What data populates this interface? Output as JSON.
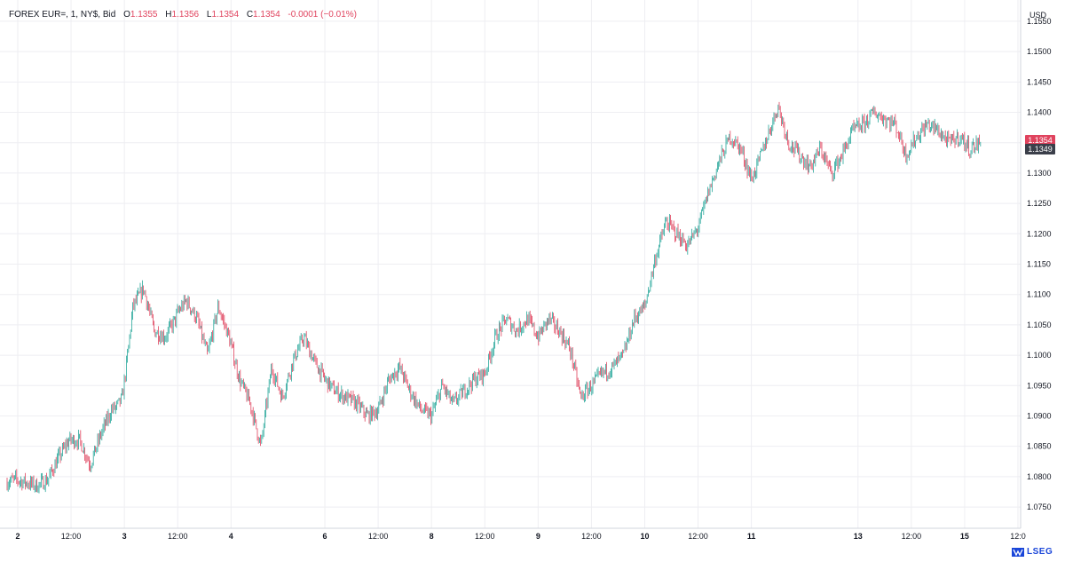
{
  "header": {
    "symbol": "FOREX EUR=, 1, NY$, Bid",
    "o_label": "O",
    "o_value": "1.1355",
    "h_label": "H",
    "h_value": "1.1356",
    "l_label": "L",
    "l_value": "1.1354",
    "c_label": "C",
    "c_value": "1.1354",
    "change": "-0.0001 (−0.01%)"
  },
  "currency": "USD",
  "logo": {
    "text": "LSEG"
  },
  "price_tags": {
    "last": {
      "value": "1.1354",
      "color": "#e0435e"
    },
    "bid": {
      "value": "1.1349",
      "color": "#3b3f4a"
    }
  },
  "colors": {
    "up": "#26a69a",
    "down": "#e0435e",
    "grid": "#eeeef2",
    "axis": "#131722"
  },
  "chart_data": {
    "type": "line",
    "title": "",
    "xlabel": "",
    "ylabel": "",
    "ylim": [
      1.0715,
      1.1585
    ],
    "y_ticks": [
      "1.0750",
      "1.0800",
      "1.0850",
      "1.0900",
      "1.0950",
      "1.1000",
      "1.1050",
      "1.1100",
      "1.1150",
      "1.1200",
      "1.1250",
      "1.1300",
      "1.1350",
      "1.1400",
      "1.1450",
      "1.1500",
      "1.1550"
    ],
    "x_ticks": [
      {
        "label": "2",
        "bold": true,
        "t": 0.12
      },
      {
        "label": "12:00",
        "bold": false,
        "t": 0.62
      },
      {
        "label": "3",
        "bold": true,
        "t": 1.12
      },
      {
        "label": "12:00",
        "bold": false,
        "t": 1.62
      },
      {
        "label": "4",
        "bold": true,
        "t": 2.12
      },
      {
        "label": "6",
        "bold": true,
        "t": 3.0
      },
      {
        "label": "12:00",
        "bold": false,
        "t": 3.5
      },
      {
        "label": "8",
        "bold": true,
        "t": 4.0
      },
      {
        "label": "12:00",
        "bold": false,
        "t": 4.5
      },
      {
        "label": "9",
        "bold": true,
        "t": 5.0
      },
      {
        "label": "12:00",
        "bold": false,
        "t": 5.5
      },
      {
        "label": "10",
        "bold": true,
        "t": 6.0
      },
      {
        "label": "12:00",
        "bold": false,
        "t": 6.5
      },
      {
        "label": "11",
        "bold": true,
        "t": 7.0
      },
      {
        "label": "13",
        "bold": true,
        "t": 8.0
      },
      {
        "label": "12:00",
        "bold": false,
        "t": 8.5
      },
      {
        "label": "15",
        "bold": true,
        "t": 9.0
      },
      {
        "label": "12:0",
        "bold": false,
        "t": 9.5
      }
    ],
    "series": [
      {
        "x": [
          0.0,
          0.1,
          0.2,
          0.3,
          0.4,
          0.5,
          0.6,
          0.7,
          0.8,
          0.9,
          1.0,
          1.05,
          1.1,
          1.15,
          1.2,
          1.3,
          1.4,
          1.5,
          1.6,
          1.62,
          1.7,
          1.8,
          1.9,
          2.0,
          2.1,
          2.2,
          2.3,
          2.4,
          2.5,
          2.6,
          2.7,
          2.8,
          2.9,
          3.0,
          3.1,
          3.2,
          3.3,
          3.4,
          3.5,
          3.6,
          3.7,
          3.8,
          3.9,
          4.0,
          4.1,
          4.2,
          4.3,
          4.4,
          4.5,
          4.6,
          4.7,
          4.8,
          4.9,
          5.0,
          5.1,
          5.2,
          5.3,
          5.4,
          5.5,
          5.6,
          5.7,
          5.8,
          5.9,
          6.0,
          6.1,
          6.2,
          6.3,
          6.4,
          6.5,
          6.6,
          6.7,
          6.8,
          6.9,
          7.0,
          7.05,
          7.15,
          7.25,
          7.35,
          7.45,
          7.55,
          7.65,
          7.75,
          7.85,
          7.95,
          8.05,
          8.15,
          8.25,
          8.35,
          8.45,
          8.55,
          8.65,
          8.75,
          8.85,
          8.95,
          9.05,
          9.15
        ],
        "y": [
          1.079,
          1.0795,
          1.079,
          1.0785,
          1.0795,
          1.083,
          1.086,
          1.086,
          1.082,
          1.087,
          1.091,
          1.0915,
          1.093,
          1.1,
          1.108,
          1.111,
          1.104,
          1.103,
          1.106,
          1.107,
          1.109,
          1.106,
          1.1,
          1.108,
          1.103,
          1.096,
          1.092,
          1.085,
          1.098,
          1.093,
          1.099,
          1.103,
          1.099,
          1.096,
          1.094,
          1.093,
          1.092,
          1.09,
          1.091,
          1.096,
          1.098,
          1.094,
          1.091,
          1.09,
          1.095,
          1.092,
          1.094,
          1.096,
          1.097,
          1.103,
          1.106,
          1.104,
          1.106,
          1.103,
          1.106,
          1.104,
          1.101,
          1.093,
          1.095,
          1.097,
          1.098,
          1.1,
          1.106,
          1.108,
          1.116,
          1.122,
          1.12,
          1.118,
          1.121,
          1.127,
          1.132,
          1.136,
          1.134,
          1.129,
          1.131,
          1.136,
          1.141,
          1.135,
          1.133,
          1.131,
          1.134,
          1.13,
          1.133,
          1.137,
          1.138,
          1.14,
          1.139,
          1.138,
          1.133,
          1.136,
          1.138,
          1.137,
          1.135,
          1.136,
          1.134,
          1.135
        ]
      }
    ]
  }
}
